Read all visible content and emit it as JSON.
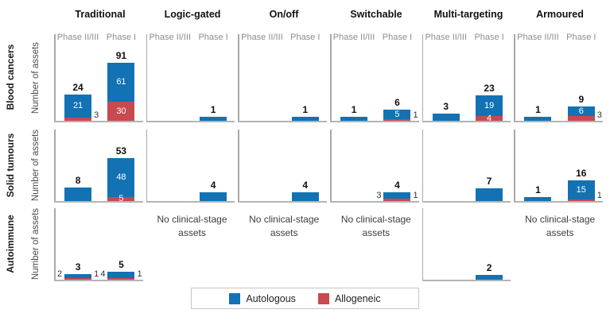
{
  "chart_data": {
    "type": "bar",
    "stacked": true,
    "columns": [
      "Traditional",
      "Logic-gated",
      "On/off",
      "Switchable",
      "Multi-targeting",
      "Armoured"
    ],
    "phases": [
      "Phase II/III",
      "Phase I"
    ],
    "ylabel": "Number of assets",
    "no_assets_text": "No clinical-stage assets",
    "legend": [
      {
        "name": "Autologous",
        "color": "#1272b4"
      },
      {
        "name": "Allogeneic",
        "color": "#c8494e"
      }
    ],
    "rows": [
      {
        "label": "Blood cancers",
        "panels": [
          {
            "column": "Traditional",
            "bars": [
              {
                "phase": "Phase II/III",
                "total": 24,
                "autologous": 21,
                "allogeneic": 3,
                "autologous_label": "inside",
                "allogeneic_label": "right"
              },
              {
                "phase": "Phase I",
                "total": 91,
                "autologous": 61,
                "allogeneic": 30,
                "autologous_label": "inside",
                "allogeneic_label": "inside"
              }
            ]
          },
          {
            "column": "Logic-gated",
            "bars": [
              {
                "phase": "Phase I",
                "total": 1,
                "autologous": 1,
                "allogeneic": 0,
                "autologous_label": "none",
                "allogeneic_label": "none"
              }
            ]
          },
          {
            "column": "On/off",
            "bars": [
              {
                "phase": "Phase I",
                "total": 1,
                "autologous": 1,
                "allogeneic": 0,
                "autologous_label": "none",
                "allogeneic_label": "none"
              }
            ]
          },
          {
            "column": "Switchable",
            "bars": [
              {
                "phase": "Phase II/III",
                "total": 1,
                "autologous": 1,
                "allogeneic": 0,
                "autologous_label": "none",
                "allogeneic_label": "none"
              },
              {
                "phase": "Phase I",
                "total": 6,
                "autologous": 5,
                "allogeneic": 1,
                "autologous_label": "inside",
                "allogeneic_label": "right"
              }
            ]
          },
          {
            "column": "Multi-targeting",
            "bars": [
              {
                "phase": "Phase II/III",
                "total": 3,
                "autologous": 3,
                "allogeneic": 0,
                "autologous_label": "none",
                "allogeneic_label": "none"
              },
              {
                "phase": "Phase I",
                "total": 23,
                "autologous": 19,
                "allogeneic": 4,
                "autologous_label": "inside",
                "allogeneic_label": "inside"
              }
            ]
          },
          {
            "column": "Armoured",
            "bars": [
              {
                "phase": "Phase II/III",
                "total": 1,
                "autologous": 1,
                "allogeneic": 0,
                "autologous_label": "none",
                "allogeneic_label": "none"
              },
              {
                "phase": "Phase I",
                "total": 9,
                "autologous": 6,
                "allogeneic": 3,
                "autologous_label": "inside",
                "allogeneic_label": "right"
              }
            ]
          }
        ]
      },
      {
        "label": "Solid tumours",
        "panels": [
          {
            "column": "Traditional",
            "bars": [
              {
                "phase": "Phase II/III",
                "total": 8,
                "autologous": 8,
                "allogeneic": 0,
                "autologous_label": "none",
                "allogeneic_label": "none"
              },
              {
                "phase": "Phase I",
                "total": 53,
                "autologous": 48,
                "allogeneic": 5,
                "autologous_label": "inside",
                "allogeneic_label": "inside"
              }
            ]
          },
          {
            "column": "Logic-gated",
            "bars": [
              {
                "phase": "Phase I",
                "total": 4,
                "autologous": 4,
                "allogeneic": 0,
                "autologous_label": "none",
                "allogeneic_label": "none"
              }
            ]
          },
          {
            "column": "On/off",
            "bars": [
              {
                "phase": "Phase I",
                "total": 4,
                "autologous": 4,
                "allogeneic": 0,
                "autologous_label": "none",
                "allogeneic_label": "none"
              }
            ]
          },
          {
            "column": "Switchable",
            "bars": [
              {
                "phase": "Phase I",
                "total": 4,
                "autologous": 3,
                "allogeneic": 1,
                "autologous_label": "left",
                "allogeneic_label": "right"
              }
            ]
          },
          {
            "column": "Multi-targeting",
            "bars": [
              {
                "phase": "Phase I",
                "total": 7,
                "autologous": 7,
                "allogeneic": 0,
                "autologous_label": "none",
                "allogeneic_label": "none"
              }
            ]
          },
          {
            "column": "Armoured",
            "bars": [
              {
                "phase": "Phase II/III",
                "total": 1,
                "autologous": 1,
                "allogeneic": 0,
                "autologous_label": "none",
                "allogeneic_label": "none"
              },
              {
                "phase": "Phase I",
                "total": 16,
                "autologous": 15,
                "allogeneic": 1,
                "autologous_label": "inside",
                "allogeneic_label": "right"
              }
            ]
          }
        ]
      },
      {
        "label": "Autoimmune",
        "panels": [
          {
            "column": "Traditional",
            "bars": [
              {
                "phase": "Phase II/III",
                "total": 3,
                "autologous": 2,
                "allogeneic": 1,
                "autologous_label": "left",
                "allogeneic_label": "right"
              },
              {
                "phase": "Phase I",
                "total": 5,
                "autologous": 4,
                "allogeneic": 1,
                "autologous_label": "left",
                "allogeneic_label": "right"
              }
            ]
          },
          {
            "column": "Logic-gated",
            "no_assets": true,
            "bars": []
          },
          {
            "column": "On/off",
            "no_assets": true,
            "bars": []
          },
          {
            "column": "Switchable",
            "no_assets": true,
            "bars": []
          },
          {
            "column": "Multi-targeting",
            "bars": [
              {
                "phase": "Phase I",
                "total": 2,
                "autologous": 2,
                "allogeneic": 0,
                "autologous_label": "none",
                "allogeneic_label": "none"
              }
            ]
          },
          {
            "column": "Armoured",
            "no_assets": true,
            "bars": []
          }
        ]
      }
    ]
  }
}
